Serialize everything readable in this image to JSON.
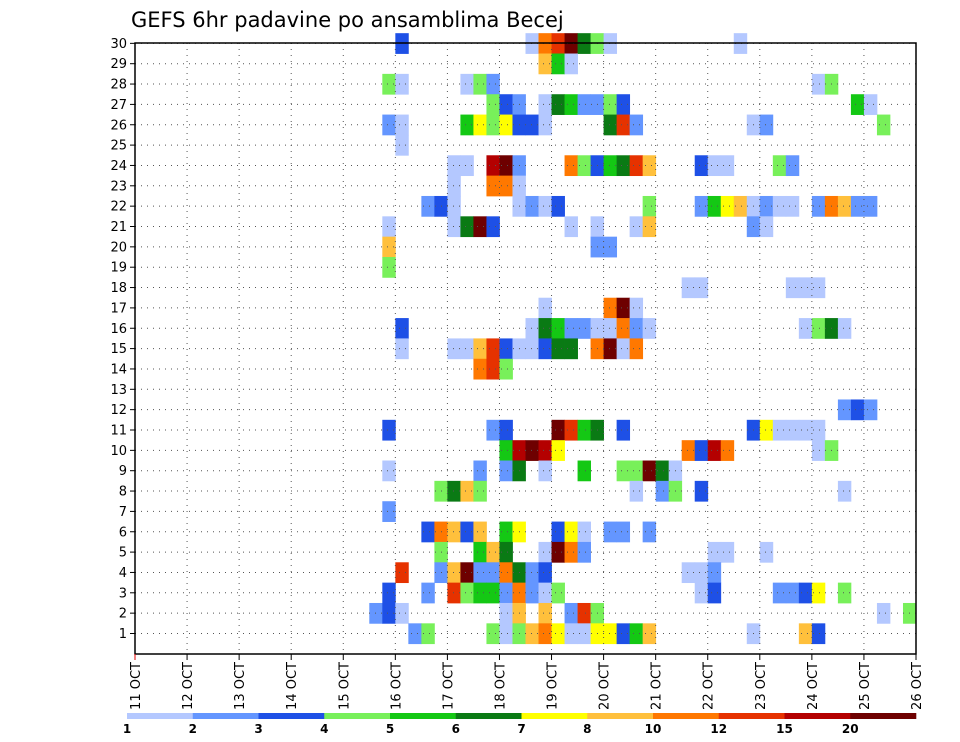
{
  "chart_data": {
    "type": "heatmap",
    "title": "GEFS 6hr padavine po ansamblima Becej",
    "x_tick_labels": [
      "11 OCT",
      "12 OCT",
      "13 OCT",
      "14 OCT",
      "15 OCT",
      "16 OCT",
      "17 OCT",
      "18 OCT",
      "19 OCT",
      "20 OCT",
      "21 OCT",
      "22 OCT",
      "23 OCT",
      "24 OCT",
      "25 OCT",
      "26 OCT"
    ],
    "y_tick_labels": [
      "1",
      "2",
      "3",
      "4",
      "5",
      "6",
      "7",
      "8",
      "9",
      "10",
      "11",
      "12",
      "13",
      "14",
      "15",
      "16",
      "17",
      "18",
      "19",
      "20",
      "21",
      "22",
      "23",
      "24",
      "25",
      "26",
      "27",
      "28",
      "29",
      "30"
    ],
    "xlim": [
      "11 OCT 00z",
      "26 OCT 00z"
    ],
    "ylim": [
      1,
      30
    ],
    "step_hours": 6,
    "grid": true,
    "colorbar": {
      "labels": [
        "1",
        "2",
        "3",
        "4",
        "5",
        "6",
        "7",
        "8",
        "10",
        "12",
        "15",
        "20"
      ],
      "colors": [
        "#b4c8ff",
        "#6496ff",
        "#1e50e6",
        "#78f05a",
        "#14c814",
        "#0a7a14",
        "#ffff00",
        "#ffc03c",
        "#ff7800",
        "#e63200",
        "#b40000",
        "#6e0000"
      ]
    },
    "cells": [
      [
        30,
        "16.0",
        2
      ],
      [
        30,
        "18.5",
        0
      ],
      [
        30,
        "18.75",
        8
      ],
      [
        30,
        "19.0",
        9
      ],
      [
        30,
        "19.25",
        11
      ],
      [
        30,
        "19.5",
        5
      ],
      [
        30,
        "19.75",
        3
      ],
      [
        30,
        "20.0",
        0
      ],
      [
        30,
        "22.5",
        0
      ],
      [
        29,
        "18.75",
        7
      ],
      [
        29,
        "19.0",
        4
      ],
      [
        29,
        "19.25",
        0
      ],
      [
        28,
        "15.75",
        3
      ],
      [
        28,
        "16.0",
        0
      ],
      [
        28,
        "17.25",
        0
      ],
      [
        28,
        "17.5",
        3
      ],
      [
        28,
        "17.75",
        1
      ],
      [
        28,
        "24.0",
        0
      ],
      [
        28,
        "24.25",
        3
      ],
      [
        27,
        "17.75",
        3
      ],
      [
        27,
        "18.0",
        2
      ],
      [
        27,
        "18.25",
        1
      ],
      [
        27,
        "18.75",
        0
      ],
      [
        27,
        "19.0",
        5
      ],
      [
        27,
        "19.25",
        4
      ],
      [
        27,
        "19.5",
        1
      ],
      [
        27,
        "19.75",
        1
      ],
      [
        27,
        "20.0",
        3
      ],
      [
        27,
        "20.25",
        2
      ],
      [
        27,
        "24.75",
        4
      ],
      [
        27,
        "25.0",
        0
      ],
      [
        26,
        "15.75",
        1
      ],
      [
        26,
        "16.0",
        0
      ],
      [
        26,
        "17.25",
        4
      ],
      [
        26,
        "17.5",
        6
      ],
      [
        26,
        "17.75",
        3
      ],
      [
        26,
        "18.0",
        6
      ],
      [
        26,
        "18.25",
        2
      ],
      [
        26,
        "18.5",
        2
      ],
      [
        26,
        "18.75",
        0
      ],
      [
        26,
        "20.0",
        5
      ],
      [
        26,
        "20.25",
        9
      ],
      [
        26,
        "20.5",
        1
      ],
      [
        26,
        "22.75",
        0
      ],
      [
        26,
        "23.0",
        1
      ],
      [
        26,
        "25.25",
        3
      ],
      [
        25,
        "16.0",
        0
      ],
      [
        24,
        "17.0",
        0
      ],
      [
        24,
        "17.25",
        0
      ],
      [
        24,
        "17.75",
        10
      ],
      [
        24,
        "18.0",
        11
      ],
      [
        24,
        "18.25",
        1
      ],
      [
        24,
        "19.25",
        8
      ],
      [
        24,
        "19.5",
        3
      ],
      [
        24,
        "19.75",
        2
      ],
      [
        24,
        "20.0",
        4
      ],
      [
        24,
        "20.25",
        5
      ],
      [
        24,
        "20.5",
        9
      ],
      [
        24,
        "20.75",
        7
      ],
      [
        24,
        "21.75",
        2
      ],
      [
        24,
        "22.0",
        0
      ],
      [
        24,
        "22.25",
        0
      ],
      [
        24,
        "23.25",
        3
      ],
      [
        24,
        "23.5",
        1
      ],
      [
        23,
        "17.0",
        0
      ],
      [
        23,
        "17.75",
        8
      ],
      [
        23,
        "18.0",
        8
      ],
      [
        23,
        "18.25",
        0
      ],
      [
        22,
        "16.5",
        1
      ],
      [
        22,
        "16.75",
        2
      ],
      [
        22,
        "17.0",
        0
      ],
      [
        22,
        "18.25",
        0
      ],
      [
        22,
        "18.5",
        1
      ],
      [
        22,
        "18.75",
        0
      ],
      [
        22,
        "19.0",
        2
      ],
      [
        22,
        "20.75",
        3
      ],
      [
        22,
        "21.75",
        1
      ],
      [
        22,
        "22.0",
        4
      ],
      [
        22,
        "22.25",
        6
      ],
      [
        22,
        "22.5",
        7
      ],
      [
        22,
        "22.75",
        0
      ],
      [
        22,
        "23.0",
        1
      ],
      [
        22,
        "23.25",
        0
      ],
      [
        22,
        "23.5",
        0
      ],
      [
        22,
        "24.0",
        1
      ],
      [
        22,
        "24.25",
        8
      ],
      [
        22,
        "24.5",
        7
      ],
      [
        22,
        "24.75",
        1
      ],
      [
        22,
        "25.0",
        1
      ],
      [
        21,
        "15.75",
        0
      ],
      [
        21,
        "17.0",
        0
      ],
      [
        21,
        "17.25",
        5
      ],
      [
        21,
        "17.5",
        11
      ],
      [
        21,
        "17.75",
        2
      ],
      [
        21,
        "19.25",
        0
      ],
      [
        21,
        "19.75",
        0
      ],
      [
        21,
        "20.5",
        0
      ],
      [
        21,
        "20.75",
        7
      ],
      [
        21,
        "22.75",
        1
      ],
      [
        21,
        "23.0",
        0
      ],
      [
        20,
        "15.75",
        7
      ],
      [
        20,
        "19.75",
        1
      ],
      [
        20,
        "20.0",
        1
      ],
      [
        19,
        "15.75",
        3
      ],
      [
        18,
        "21.5",
        0
      ],
      [
        18,
        "21.75",
        0
      ],
      [
        18,
        "23.5",
        0
      ],
      [
        18,
        "23.75",
        0
      ],
      [
        18,
        "24.0",
        0
      ],
      [
        17,
        "18.75",
        0
      ],
      [
        17,
        "20.0",
        8
      ],
      [
        17,
        "20.25",
        11
      ],
      [
        17,
        "20.5",
        0
      ],
      [
        16,
        "16.0",
        2
      ],
      [
        16,
        "18.5",
        0
      ],
      [
        16,
        "18.75",
        5
      ],
      [
        16,
        "19.0",
        4
      ],
      [
        16,
        "19.25",
        1
      ],
      [
        16,
        "19.5",
        1
      ],
      [
        16,
        "19.75",
        0
      ],
      [
        16,
        "20.0",
        0
      ],
      [
        16,
        "20.25",
        8
      ],
      [
        16,
        "20.5",
        1
      ],
      [
        16,
        "20.75",
        0
      ],
      [
        16,
        "23.75",
        0
      ],
      [
        16,
        "24.0",
        3
      ],
      [
        16,
        "24.25",
        5
      ],
      [
        16,
        "24.5",
        0
      ],
      [
        15,
        "16.0",
        0
      ],
      [
        15,
        "17.0",
        0
      ],
      [
        15,
        "17.25",
        0
      ],
      [
        15,
        "17.5",
        7
      ],
      [
        15,
        "17.75",
        9
      ],
      [
        15,
        "18.0",
        2
      ],
      [
        15,
        "18.25",
        0
      ],
      [
        15,
        "18.5",
        0
      ],
      [
        15,
        "18.75",
        2
      ],
      [
        15,
        "19.0",
        5
      ],
      [
        15,
        "19.25",
        5
      ],
      [
        15,
        "19.75",
        8
      ],
      [
        15,
        "20.0",
        11
      ],
      [
        15,
        "20.25",
        0
      ],
      [
        15,
        "20.5",
        8
      ],
      [
        14,
        "17.5",
        8
      ],
      [
        14,
        "17.75",
        9
      ],
      [
        14,
        "18.0",
        3
      ],
      [
        12,
        "24.5",
        1
      ],
      [
        12,
        "24.75",
        2
      ],
      [
        12,
        "25.0",
        1
      ],
      [
        11,
        "15.75",
        2
      ],
      [
        11,
        "17.75",
        1
      ],
      [
        11,
        "18.0",
        2
      ],
      [
        11,
        "19.0",
        11
      ],
      [
        11,
        "19.25",
        9
      ],
      [
        11,
        "19.5",
        4
      ],
      [
        11,
        "19.75",
        5
      ],
      [
        11,
        "20.25",
        2
      ],
      [
        11,
        "22.75",
        2
      ],
      [
        11,
        "23.0",
        6
      ],
      [
        11,
        "23.25",
        0
      ],
      [
        11,
        "23.5",
        0
      ],
      [
        11,
        "23.75",
        0
      ],
      [
        11,
        "24.0",
        0
      ],
      [
        10,
        "18.0",
        4
      ],
      [
        10,
        "18.25",
        10
      ],
      [
        10,
        "18.5",
        11
      ],
      [
        10,
        "18.75",
        10
      ],
      [
        10,
        "19.0",
        6
      ],
      [
        10,
        "21.5",
        8
      ],
      [
        10,
        "21.75",
        2
      ],
      [
        10,
        "22.0",
        10
      ],
      [
        10,
        "22.25",
        8
      ],
      [
        10,
        "24.0",
        0
      ],
      [
        10,
        "24.25",
        3
      ],
      [
        9,
        "15.75",
        0
      ],
      [
        9,
        "17.5",
        1
      ],
      [
        9,
        "18.0",
        1
      ],
      [
        9,
        "18.25",
        5
      ],
      [
        9,
        "18.75",
        0
      ],
      [
        9,
        "19.5",
        4
      ],
      [
        9,
        "20.25",
        3
      ],
      [
        9,
        "20.5",
        3
      ],
      [
        9,
        "20.75",
        11
      ],
      [
        9,
        "21.0",
        5
      ],
      [
        9,
        "21.25",
        0
      ],
      [
        8,
        "16.75",
        3
      ],
      [
        8,
        "17.0",
        5
      ],
      [
        8,
        "17.25",
        7
      ],
      [
        8,
        "17.5",
        3
      ],
      [
        8,
        "20.5",
        0
      ],
      [
        8,
        "21.0",
        1
      ],
      [
        8,
        "21.25",
        3
      ],
      [
        8,
        "21.75",
        2
      ],
      [
        8,
        "24.5",
        0
      ],
      [
        7,
        "15.75",
        1
      ],
      [
        6,
        "16.5",
        2
      ],
      [
        6,
        "16.75",
        8
      ],
      [
        6,
        "17.0",
        7
      ],
      [
        6,
        "17.25",
        2
      ],
      [
        6,
        "17.5",
        7
      ],
      [
        6,
        "18.0",
        4
      ],
      [
        6,
        "18.25",
        6
      ],
      [
        6,
        "19.0",
        2
      ],
      [
        6,
        "19.25",
        6
      ],
      [
        6,
        "19.5",
        0
      ],
      [
        6,
        "20.0",
        1
      ],
      [
        6,
        "20.25",
        1
      ],
      [
        6,
        "20.75",
        1
      ],
      [
        5,
        "16.75",
        3
      ],
      [
        5,
        "17.5",
        4
      ],
      [
        5,
        "17.75",
        7
      ],
      [
        5,
        "18.0",
        5
      ],
      [
        5,
        "18.75",
        0
      ],
      [
        5,
        "19.0",
        11
      ],
      [
        5,
        "19.25",
        8
      ],
      [
        5,
        "19.5",
        1
      ],
      [
        5,
        "22.0",
        0
      ],
      [
        5,
        "22.25",
        0
      ],
      [
        5,
        "23.0",
        0
      ],
      [
        4,
        "16.0",
        9
      ],
      [
        4,
        "16.75",
        1
      ],
      [
        4,
        "17.0",
        7
      ],
      [
        4,
        "17.25",
        11
      ],
      [
        4,
        "17.5",
        1
      ],
      [
        4,
        "17.75",
        1
      ],
      [
        4,
        "18.0",
        8
      ],
      [
        4,
        "18.25",
        5
      ],
      [
        4,
        "18.5",
        1
      ],
      [
        4,
        "18.75",
        2
      ],
      [
        4,
        "21.5",
        0
      ],
      [
        4,
        "21.75",
        0
      ],
      [
        4,
        "22.0",
        1
      ],
      [
        3,
        "15.75",
        2
      ],
      [
        3,
        "16.5",
        1
      ],
      [
        3,
        "17.0",
        9
      ],
      [
        3,
        "17.25",
        3
      ],
      [
        3,
        "17.5",
        4
      ],
      [
        3,
        "17.75",
        4
      ],
      [
        3,
        "18.0",
        1
      ],
      [
        3,
        "18.25",
        8
      ],
      [
        3,
        "18.5",
        1
      ],
      [
        3,
        "18.75",
        0
      ],
      [
        3,
        "19.0",
        3
      ],
      [
        3,
        "21.75",
        0
      ],
      [
        3,
        "22.0",
        2
      ],
      [
        3,
        "23.25",
        1
      ],
      [
        3,
        "23.5",
        1
      ],
      [
        3,
        "23.75",
        2
      ],
      [
        3,
        "24.0",
        6
      ],
      [
        3,
        "24.5",
        3
      ],
      [
        2,
        "15.5",
        1
      ],
      [
        2,
        "15.75",
        2
      ],
      [
        2,
        "16.0",
        0
      ],
      [
        2,
        "18.0",
        0
      ],
      [
        2,
        "18.25",
        7
      ],
      [
        2,
        "18.75",
        7
      ],
      [
        2,
        "19.25",
        1
      ],
      [
        2,
        "19.5",
        9
      ],
      [
        2,
        "19.75",
        3
      ],
      [
        2,
        "25.25",
        0
      ],
      [
        2,
        "25.75",
        3
      ],
      [
        1,
        "16.25",
        1
      ],
      [
        1,
        "16.5",
        3
      ],
      [
        1,
        "17.75",
        3
      ],
      [
        1,
        "18.0",
        0
      ],
      [
        1,
        "18.25",
        3
      ],
      [
        1,
        "18.5",
        7
      ],
      [
        1,
        "18.75",
        8
      ],
      [
        1,
        "19.0",
        6
      ],
      [
        1,
        "19.25",
        0
      ],
      [
        1,
        "19.5",
        0
      ],
      [
        1,
        "19.75",
        6
      ],
      [
        1,
        "20.0",
        6
      ],
      [
        1,
        "20.25",
        2
      ],
      [
        1,
        "20.5",
        4
      ],
      [
        1,
        "20.75",
        7
      ],
      [
        1,
        "22.75",
        0
      ],
      [
        1,
        "23.75",
        7
      ],
      [
        1,
        "24.0",
        2
      ]
    ]
  }
}
